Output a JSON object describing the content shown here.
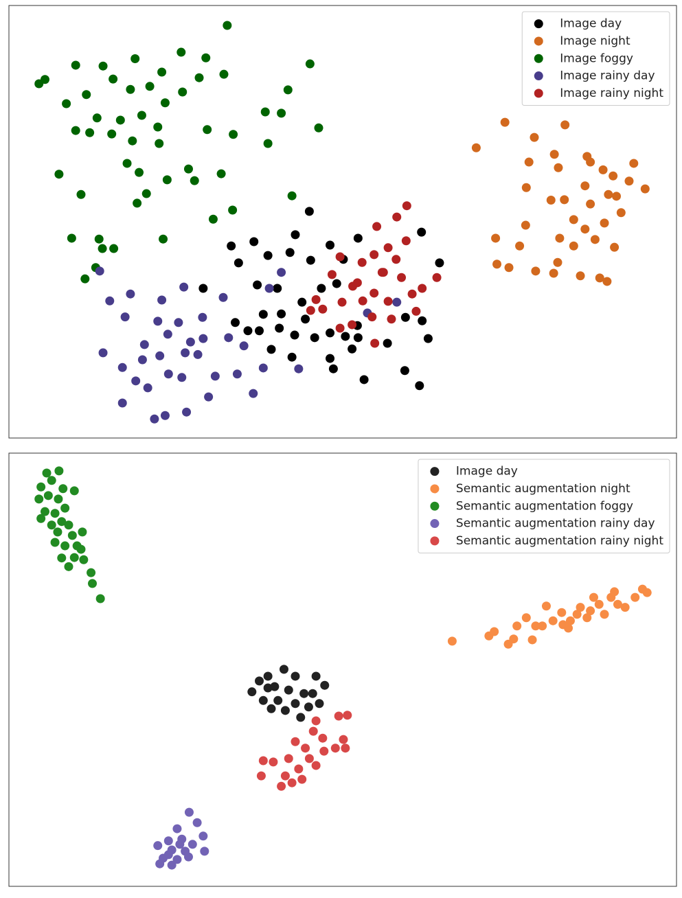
{
  "chart_data": [
    {
      "type": "scatter",
      "xlim": [
        0,
        100
      ],
      "ylim": [
        0,
        100
      ],
      "legend": "upper right",
      "series": [
        {
          "name": "Image day",
          "color": "#000000",
          "x": [
            45,
            33.3,
            36.7,
            42.9,
            52.3,
            61.8,
            34.4,
            38.8,
            42.1,
            45.2,
            48.1,
            50.1,
            64.5,
            29.1,
            37.2,
            40.2,
            46.8,
            49.1,
            43.9,
            40.8,
            38.1,
            44.4,
            33.9,
            35.8,
            37.5,
            40.5,
            42.8,
            45.8,
            48.1,
            50.4,
            52.3,
            56.7,
            62.8,
            61.9,
            59.4,
            51.4,
            39.3,
            42.4,
            48.1,
            48.6,
            53.2,
            59.3,
            61.5,
            52.2
          ],
          "y": [
            52.4,
            44.4,
            45.4,
            47,
            46.2,
            47.6,
            40.5,
            42.2,
            42.9,
            41.1,
            44.6,
            41.3,
            40.5,
            34.6,
            35.4,
            34.6,
            34.6,
            35.7,
            31.4,
            28.7,
            28.6,
            27.5,
            26.7,
            24.8,
            24.8,
            25.4,
            23.8,
            23.2,
            24.3,
            23.5,
            23.2,
            21.9,
            23,
            27.1,
            27.9,
            20.6,
            20.5,
            18.7,
            18.4,
            16,
            13.5,
            15.6,
            12.1,
            26
          ]
        },
        {
          "name": "Image night",
          "color": "#d2691e",
          "x": [
            74.3,
            83.3,
            70,
            78.7,
            81.7,
            86.6,
            93.6,
            77.9,
            82.3,
            89,
            90.5,
            86.3,
            92.9,
            95.3,
            77.5,
            81.2,
            83.2,
            87.1,
            91,
            91.7,
            89.2,
            77.4,
            84.6,
            86.3,
            72.9,
            76.5,
            82.5,
            87.8,
            90.7,
            84.6,
            82.2,
            73.1,
            74.9,
            78.9,
            81.6,
            85.6,
            88.5,
            89.6,
            87.1,
            89.8
          ],
          "y": [
            73,
            72.4,
            67.1,
            69.5,
            65.6,
            65.1,
            63.5,
            63.8,
            62.5,
            62,
            60.6,
            58.3,
            59.4,
            57.6,
            57.9,
            55,
            55.1,
            54.1,
            55.9,
            52.1,
            49.7,
            49.2,
            50.5,
            48.3,
            46.2,
            44.4,
            46.2,
            45.9,
            44.1,
            44.4,
            40.6,
            40.2,
            39.4,
            38.6,
            38.1,
            37.5,
            37,
            36.2,
            63.8,
            56.3
          ]
        },
        {
          "name": "Image foggy",
          "color": "#006400",
          "x": [
            32.7,
            45.1,
            25.8,
            18.9,
            10,
            4.5,
            5.4,
            8.6,
            11.6,
            14.1,
            15.6,
            18.2,
            21.1,
            22.9,
            29.5,
            32.2,
            28.5,
            26,
            23.4,
            19.9,
            16.7,
            12.1,
            10,
            15.4,
            18.5,
            22.5,
            17.7,
            19.5,
            7.5,
            23.7,
            27.8,
            31.8,
            29.7,
            33.6,
            38.4,
            40.8,
            41.8,
            46.4,
            38.8,
            10.8,
            20.6,
            19.2,
            30.6,
            33.5,
            42.4,
            9.4,
            13.5,
            14,
            15.7,
            23.1,
            13,
            11.4,
            13.2,
            26.9,
            22.3
          ],
          "y": [
            95.4,
            86.5,
            89.2,
            87.7,
            86.2,
            81.9,
            82.9,
            77.3,
            79.4,
            86,
            83,
            80.6,
            81.3,
            84.6,
            87.9,
            84.1,
            83.3,
            80,
            77.5,
            74.6,
            73.5,
            70.6,
            71.1,
            70.3,
            68.7,
            68.1,
            63.5,
            61.4,
            61,
            59.7,
            59.5,
            61.1,
            71.3,
            70.2,
            75.4,
            75.1,
            80.5,
            71.7,
            68.1,
            56.3,
            56.5,
            54.3,
            50.6,
            52.7,
            56,
            46.2,
            46,
            43.8,
            43.8,
            46,
            39.4,
            36.8,
            74,
            62.2,
            71.9
          ]
        },
        {
          "name": "Image rainy day",
          "color": "#483d8b",
          "x": [
            13.6,
            15.1,
            18.2,
            22.9,
            26.2,
            17.4,
            22.3,
            25.4,
            29,
            27.2,
            29.1,
            20.3,
            23.8,
            14.1,
            17,
            20,
            22.6,
            26.4,
            28.3,
            19,
            23.9,
            25.9,
            30.9,
            34.2,
            36.6,
            17,
            21.8,
            23.4,
            26.6,
            29.9,
            35.2,
            32.9,
            43.4,
            39,
            40.8,
            38.1,
            20.8,
            32.1,
            58.1,
            53.7
          ],
          "y": [
            38.6,
            31.7,
            33.3,
            31.9,
            34.9,
            28,
            27,
            26.7,
            27.9,
            22.2,
            23,
            21.6,
            24,
            19.7,
            16.3,
            18.1,
            19,
            19.7,
            19.3,
            13.2,
            14.8,
            14,
            14.3,
            14.8,
            10.3,
            8.1,
            4.4,
            5.2,
            6,
            9.5,
            21.3,
            23.2,
            16,
            34.6,
            38.3,
            16.2,
            11.6,
            32.5,
            31.4,
            28.9
          ]
        },
        {
          "name": "Image rainy night",
          "color": "#b22222",
          "x": [
            59.6,
            55.1,
            58.1,
            59.5,
            56.8,
            54.7,
            49.6,
            58,
            52.9,
            55.9,
            58.8,
            64.1,
            61.9,
            48.4,
            51.5,
            54.7,
            56.8,
            46,
            47,
            49.9,
            53,
            61,
            54.4,
            57.3,
            49.6,
            51.4,
            45.2,
            54.8,
            60.4,
            52.2,
            56.1
          ],
          "y": [
            53.7,
            48.9,
            51.1,
            45.6,
            44,
            42.4,
            41.9,
            41.3,
            40.6,
            38.3,
            37.1,
            37.1,
            34.6,
            37.8,
            35.1,
            33.5,
            31.6,
            32,
            29.8,
            31.4,
            31.7,
            29.3,
            28,
            27.5,
            25.4,
            26.2,
            29.5,
            21.9,
            33.3,
            35.9,
            38.3
          ]
        }
      ]
    },
    {
      "type": "scatter",
      "xlim": [
        0,
        100
      ],
      "ylim": [
        0,
        100
      ],
      "legend": "upper right",
      "series": [
        {
          "name": "Image day",
          "color": "#222222",
          "x": [
            41.2,
            38.8,
            37.5,
            42.9,
            46,
            47.3,
            36.4,
            39.8,
            41.9,
            44.2,
            38.1,
            40.3,
            42.9,
            39.3,
            41.4,
            44.9,
            46.5,
            43.7,
            45.5,
            38.8
          ],
          "y": [
            50.1,
            48.5,
            47.4,
            48.5,
            48.5,
            46.4,
            44.9,
            46.1,
            45.3,
            44.5,
            42.9,
            42.9,
            42.2,
            41,
            40.6,
            41.4,
            42.2,
            39,
            44.5,
            45.8
          ]
        },
        {
          "name": "Semantic augmentation night",
          "color": "#f78c45",
          "x": [
            66.4,
            71.9,
            72.7,
            74.8,
            75.6,
            76.1,
            77.5,
            78.4,
            78.9,
            80.5,
            79.9,
            81.5,
            82.8,
            84.1,
            85.1,
            85.6,
            87.1,
            88.4,
            89.2,
            90.2,
            91.2,
            92.3,
            90.7,
            93.8,
            94.9,
            95.6,
            83,
            86.6,
            87.6,
            83.8
          ],
          "y": [
            56.6,
            57.8,
            58.8,
            55.9,
            57.1,
            60.1,
            62,
            56.9,
            60.1,
            64.7,
            60.1,
            61.3,
            63.2,
            61.3,
            62.8,
            64.4,
            63.6,
            65.1,
            62.8,
            66.7,
            65.1,
            64.4,
            68,
            66.7,
            68.6,
            67.8,
            60.4,
            62,
            66.7,
            59.6
          ]
        },
        {
          "name": "Semantic augmentation foggy",
          "color": "#228b22",
          "x": [
            5.66,
            7.5,
            6.4,
            8.1,
            4.8,
            5.9,
            4.5,
            7.4,
            9.8,
            5.4,
            6.9,
            8.4,
            4.8,
            6.4,
            7.9,
            7.3,
            9.5,
            11,
            8.4,
            10.8,
            9.8,
            7.9,
            8.95,
            11.2,
            12.3,
            12.5,
            13.7,
            6.9,
            10.2,
            8.95
          ],
          "y": [
            95.4,
            95.9,
            93.7,
            91.8,
            92.2,
            90.2,
            89.4,
            89.4,
            91.3,
            86.5,
            86.1,
            87.3,
            84.9,
            83.4,
            84.2,
            81.8,
            81,
            81.8,
            78.6,
            77.8,
            75.9,
            75.8,
            73.8,
            75.4,
            72.4,
            69.9,
            66.4,
            79.4,
            78.6,
            83.4
          ]
        },
        {
          "name": "Semantic augmentation rainy day",
          "color": "#7263b5",
          "x": [
            27,
            28.2,
            25.2,
            29.1,
            23.9,
            25.9,
            27.5,
            22.3,
            24.4,
            26.4,
            23.1,
            25.2,
            26.9,
            22.6,
            24.4,
            29.3,
            25.6,
            23.9
          ],
          "y": [
            17.1,
            14.7,
            13.3,
            11.6,
            10.5,
            10.9,
            9.7,
            9.4,
            8.4,
            8.1,
            6.5,
            6.2,
            6.8,
            5.2,
            4.9,
            8.1,
            9.7,
            7.3
          ]
        },
        {
          "name": "Semantic augmentation rainy night",
          "color": "#d84848",
          "x": [
            49.4,
            50.7,
            46,
            45.6,
            47,
            50.1,
            42.9,
            44.4,
            48.9,
            50.4,
            47.2,
            38.1,
            39.6,
            41.9,
            45,
            43.4,
            46,
            37.8,
            41.4,
            43.9,
            40.8,
            42.4
          ],
          "y": [
            39.3,
            39.5,
            38.2,
            35.8,
            34.2,
            33.9,
            33.4,
            31.9,
            31.9,
            31.9,
            31.2,
            29,
            28.7,
            29.5,
            29.5,
            27.1,
            27.9,
            25.5,
            25.5,
            24.7,
            23.1,
            23.9
          ]
        }
      ]
    }
  ]
}
